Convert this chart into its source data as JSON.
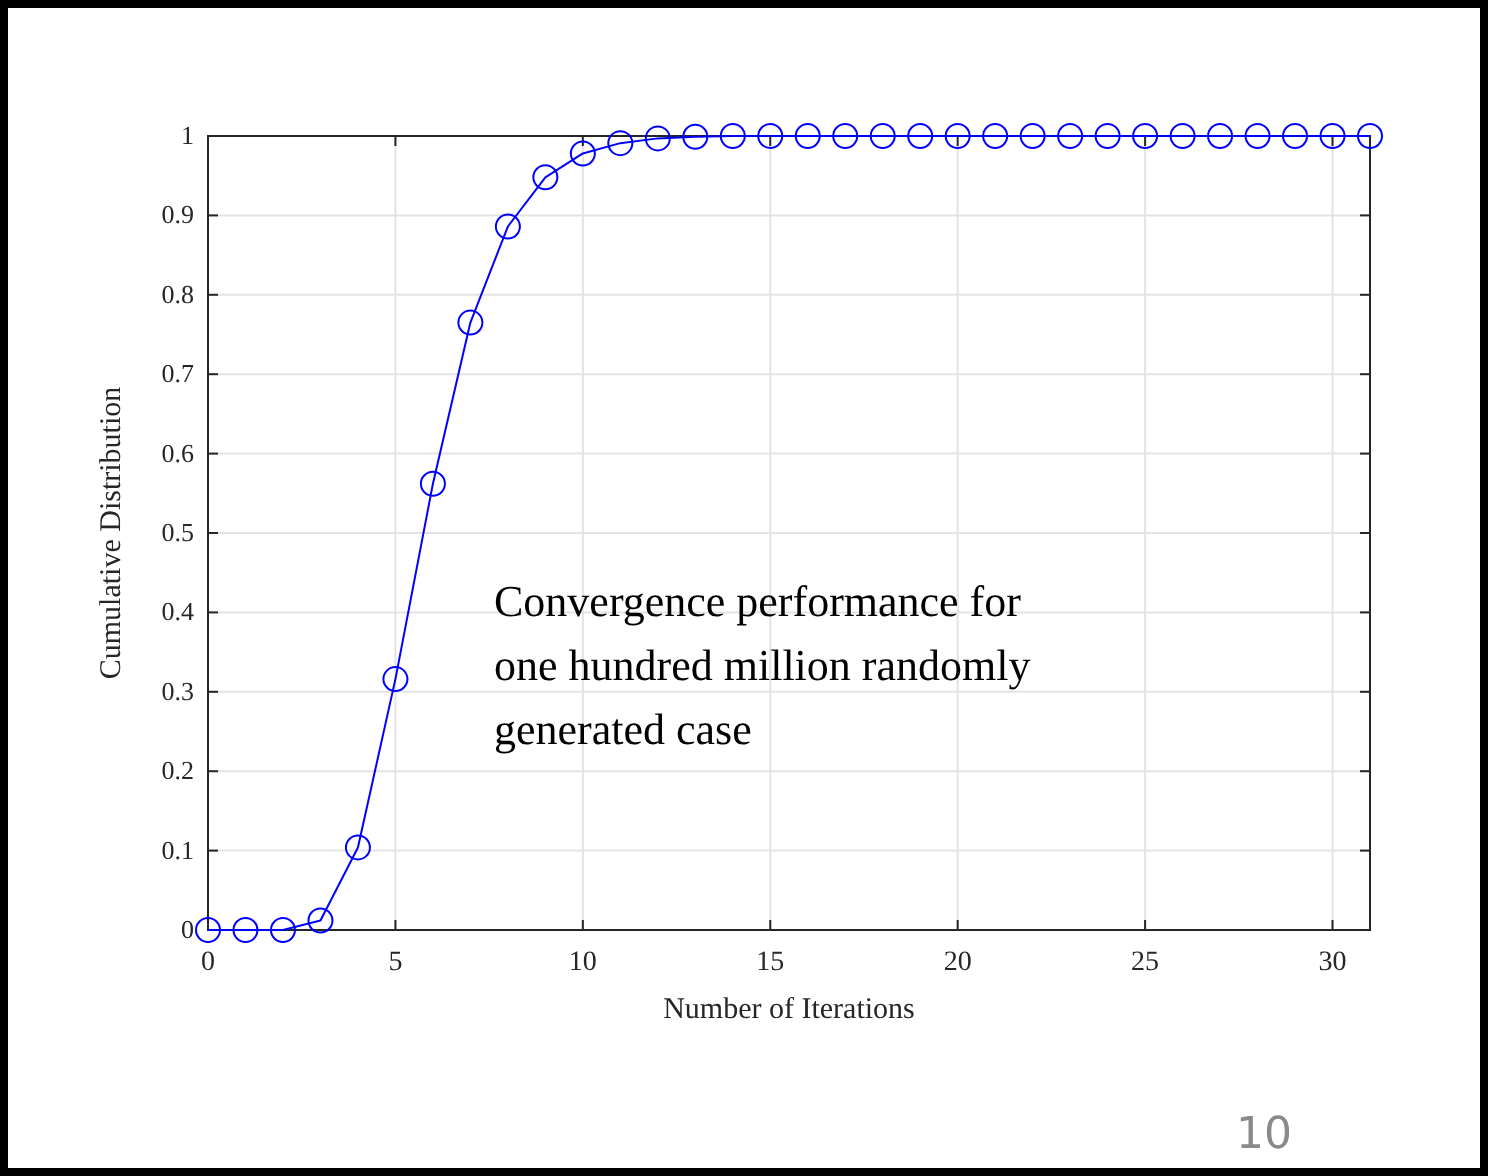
{
  "chart_data": {
    "type": "line",
    "xlabel": "Number of Iterations",
    "ylabel": "Cumulative Distribution",
    "x": [
      0,
      1,
      2,
      3,
      4,
      5,
      6,
      7,
      8,
      9,
      10,
      11,
      12,
      13,
      14,
      15,
      16,
      17,
      18,
      19,
      20,
      21,
      22,
      23,
      24,
      25,
      26,
      27,
      28,
      29,
      30,
      31
    ],
    "series": [
      {
        "color": "#0000ff",
        "values": [
          0,
          0,
          0,
          0.012,
          0.104,
          0.316,
          0.562,
          0.765,
          0.886,
          0.948,
          0.978,
          0.991,
          0.997,
          0.999,
          1,
          1,
          1,
          1,
          1,
          1,
          1,
          1,
          1,
          1,
          1,
          1,
          1,
          1,
          1,
          1,
          1,
          1
        ]
      }
    ],
    "xlim": [
      0,
      31
    ],
    "xticks": [
      0,
      5,
      10,
      15,
      20,
      25,
      30
    ],
    "ylim": [
      0,
      1
    ],
    "yticks": [
      0,
      0.1,
      0.2,
      0.3,
      0.4,
      0.5,
      0.6,
      0.7,
      0.8,
      0.9,
      1
    ],
    "grid": true,
    "marker": "circle",
    "line_style": "solid",
    "annotations": [
      "Convergence performance for one hundred million randomly generated case",
      "10"
    ]
  }
}
